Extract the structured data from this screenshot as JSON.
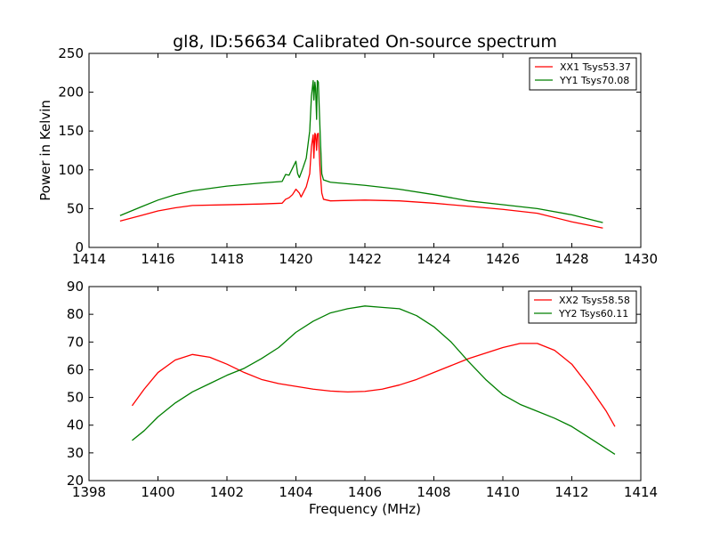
{
  "colors": {
    "xx": "#ff0000",
    "yy": "#007f00"
  },
  "chart_data": [
    {
      "type": "line",
      "title": "gl8, ID:56634 Calibrated On-source spectrum",
      "xlabel": "",
      "ylabel": "Power in Kelvin",
      "xlim": [
        1414,
        1430
      ],
      "ylim": [
        0,
        250
      ],
      "xticks": [
        1414,
        1416,
        1418,
        1420,
        1422,
        1424,
        1426,
        1428,
        1430
      ],
      "yticks": [
        0,
        50,
        100,
        150,
        200,
        250
      ],
      "legend": "top-right",
      "series": [
        {
          "name": "XX1 Tsys53.37",
          "color": "#ff0000",
          "x": [
            1414.9,
            1415.5,
            1416.0,
            1416.5,
            1417.0,
            1418.0,
            1419.0,
            1419.6,
            1419.7,
            1419.8,
            1419.9,
            1420.0,
            1420.1,
            1420.15,
            1420.3,
            1420.4,
            1420.45,
            1420.5,
            1420.52,
            1420.55,
            1420.57,
            1420.6,
            1420.62,
            1420.65,
            1420.7,
            1420.75,
            1420.8,
            1421.0,
            1422.0,
            1423.0,
            1424.0,
            1425.0,
            1426.0,
            1427.0,
            1428.0,
            1428.9
          ],
          "y": [
            34,
            41,
            47,
            51,
            54,
            55,
            56,
            57,
            62,
            64,
            68,
            75,
            70,
            65,
            78,
            95,
            130,
            145,
            115,
            147,
            145,
            125,
            146,
            147,
            100,
            70,
            62,
            60,
            61,
            60,
            57,
            53,
            49,
            44,
            33,
            25
          ]
        },
        {
          "name": "YY1 Tsys70.08",
          "color": "#007f00",
          "x": [
            1414.9,
            1415.5,
            1416.0,
            1416.5,
            1417.0,
            1418.0,
            1419.0,
            1419.6,
            1419.7,
            1419.8,
            1419.9,
            1420.0,
            1420.05,
            1420.1,
            1420.2,
            1420.3,
            1420.4,
            1420.45,
            1420.5,
            1420.52,
            1420.55,
            1420.57,
            1420.6,
            1420.62,
            1420.65,
            1420.7,
            1420.75,
            1420.8,
            1421.0,
            1422.0,
            1423.0,
            1424.0,
            1425.0,
            1426.0,
            1427.0,
            1428.0,
            1428.9
          ],
          "y": [
            41,
            52,
            61,
            68,
            73,
            79,
            83,
            85,
            94,
            93,
            102,
            111,
            95,
            90,
            102,
            115,
            150,
            195,
            215,
            190,
            213,
            205,
            165,
            215,
            213,
            150,
            95,
            87,
            84,
            80,
            75,
            68,
            60,
            55,
            50,
            42,
            32
          ]
        }
      ]
    },
    {
      "type": "line",
      "title": "",
      "xlabel": "Frequency (MHz)",
      "ylabel": "",
      "xlim": [
        1398,
        1414
      ],
      "ylim": [
        20,
        90
      ],
      "xticks": [
        1398,
        1400,
        1402,
        1404,
        1406,
        1408,
        1410,
        1412,
        1414
      ],
      "yticks": [
        20,
        30,
        40,
        50,
        60,
        70,
        80,
        90
      ],
      "legend": "top-right",
      "series": [
        {
          "name": "XX2 Tsys58.58",
          "color": "#ff0000",
          "x": [
            1399.25,
            1399.6,
            1400.0,
            1400.5,
            1401.0,
            1401.5,
            1402.0,
            1402.5,
            1403.0,
            1403.5,
            1404.0,
            1404.5,
            1405.0,
            1405.5,
            1406.0,
            1406.5,
            1407.0,
            1407.5,
            1408.0,
            1408.5,
            1409.0,
            1409.5,
            1410.0,
            1410.5,
            1411.0,
            1411.5,
            1412.0,
            1412.5,
            1413.0,
            1413.25
          ],
          "y": [
            47,
            53,
            59,
            63.5,
            65.5,
            64.5,
            62,
            59,
            56.5,
            55,
            54,
            53,
            52.3,
            52,
            52.2,
            53,
            54.5,
            56.5,
            59,
            61.5,
            64,
            66,
            68,
            69.5,
            69.5,
            67,
            62,
            54,
            45,
            39.5
          ]
        },
        {
          "name": "YY2 Tsys60.11",
          "color": "#007f00",
          "x": [
            1399.25,
            1399.6,
            1400.0,
            1400.5,
            1401.0,
            1401.5,
            1402.0,
            1402.5,
            1403.0,
            1403.5,
            1404.0,
            1404.5,
            1405.0,
            1405.5,
            1406.0,
            1406.5,
            1407.0,
            1407.5,
            1408.0,
            1408.5,
            1409.0,
            1409.5,
            1410.0,
            1410.5,
            1411.0,
            1411.5,
            1412.0,
            1412.5,
            1413.0,
            1413.25
          ],
          "y": [
            34.5,
            38,
            43,
            48,
            52,
            55,
            58,
            60.5,
            64,
            68,
            73.5,
            77.5,
            80.5,
            82,
            83,
            82.5,
            82,
            79.5,
            75.5,
            70,
            63,
            56.5,
            51,
            47.5,
            45,
            42.5,
            39.5,
            35.5,
            31.5,
            29.5
          ]
        }
      ]
    }
  ]
}
